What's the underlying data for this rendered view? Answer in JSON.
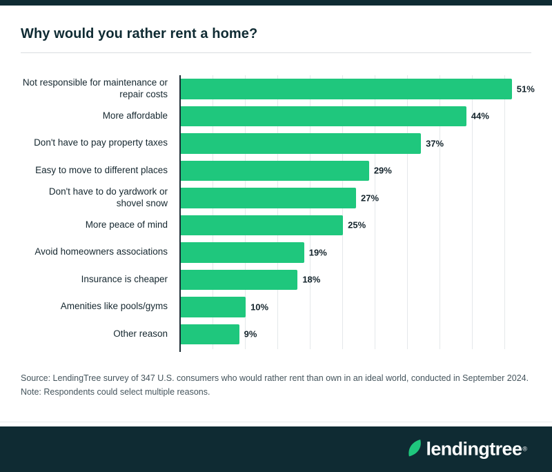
{
  "chart_data": {
    "type": "bar",
    "orientation": "horizontal",
    "title": "Why would you rather rent a home?",
    "categories": [
      "Not responsible for maintenance or repair costs",
      "More affordable",
      "Don't have to pay property taxes",
      "Easy to move to different places",
      "Don't have to do yardwork or shovel snow",
      "More peace of mind",
      "Avoid homeowners associations",
      "Insurance is cheaper",
      "Amenities like pools/gyms",
      "Other reason"
    ],
    "values": [
      51,
      44,
      37,
      29,
      27,
      25,
      19,
      18,
      10,
      9
    ],
    "value_suffix": "%",
    "xlabel": "",
    "ylabel": "",
    "xlim": [
      0,
      54
    ],
    "gridline_step": 5,
    "grid": true,
    "legend": false,
    "bar_color": "#1fc77d"
  },
  "source": {
    "text": "Source: LendingTree survey of 347 U.S. consumers who would rather rent than own in an ideal world, conducted in September 2024. Note: Respondents could select multiple reasons."
  },
  "footer": {
    "logo_text": "lendingtree",
    "reg": "®"
  },
  "colors": {
    "brand_dark": "#0f2b33",
    "brand_green": "#1fc77d",
    "gridline": "#e4e8ea",
    "axis": "#1a2a32",
    "text_dark": "#15272f",
    "source_text": "#44545c"
  }
}
